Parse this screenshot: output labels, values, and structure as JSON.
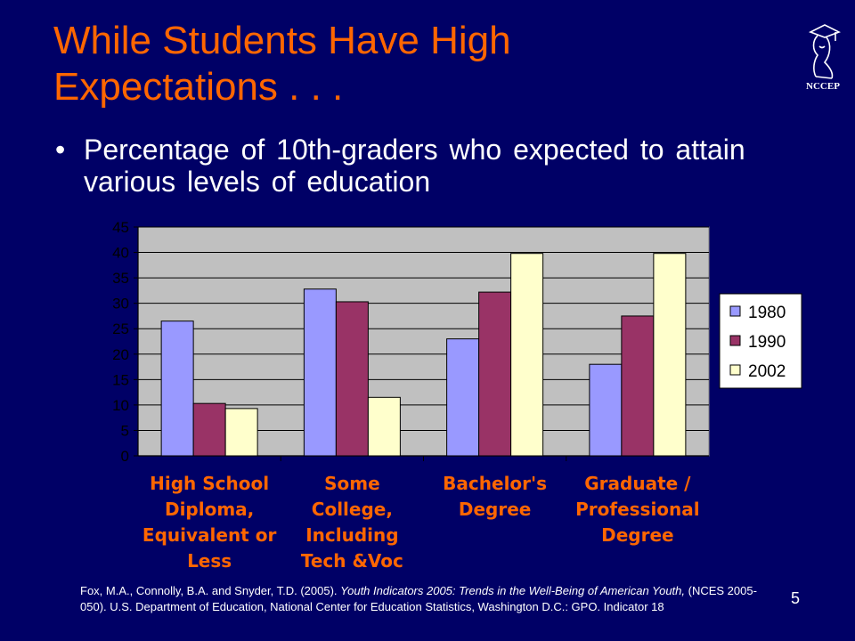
{
  "slide": {
    "title_line1": "While Students Have High",
    "title_line2": "Expectations . . .",
    "bullet": "Percentage of 10th-graders who expected to attain various levels of education",
    "page_number": "5",
    "logo_text": "NCCEP",
    "citation": {
      "part1": "Fox, M.A., Connolly, B.A. and Snyder, T.D.   (2005). ",
      "italic": "Youth Indicators 2005: Trends in the Well-Being of American Youth,",
      "part2": " (NCES 2005-050). U.S. Department of Education, National Center for Education Statistics, Washington D.C.: GPO. Indicator 18"
    }
  },
  "colors": {
    "background": "#000066",
    "title": "#ff6600",
    "plot_area": "#c0c0c0",
    "label_orange": "#ff6600"
  },
  "chart_data": {
    "type": "bar",
    "categories": [
      [
        "High School",
        "Diploma,",
        "Equivalent or",
        "Less"
      ],
      [
        "Some",
        "College,",
        "Including",
        "Tech &Voc"
      ],
      [
        "Bachelor's",
        "Degree"
      ],
      [
        "Graduate /",
        "Professional",
        "Degree"
      ]
    ],
    "series": [
      {
        "name": "1980",
        "color": "#9999ff",
        "values": [
          26.5,
          32.8,
          23,
          18
        ]
      },
      {
        "name": "1990",
        "color": "#993366",
        "values": [
          10.3,
          30.3,
          32.2,
          27.5
        ]
      },
      {
        "name": "2002",
        "color": "#ffffcc",
        "values": [
          9.3,
          11.5,
          39.8,
          39.8
        ]
      }
    ],
    "yticks": [
      "0",
      "5",
      "10",
      "15",
      "20",
      "25",
      "30",
      "35",
      "40",
      "45"
    ],
    "ylim": [
      0,
      45
    ],
    "grid": true,
    "legend": "right"
  }
}
